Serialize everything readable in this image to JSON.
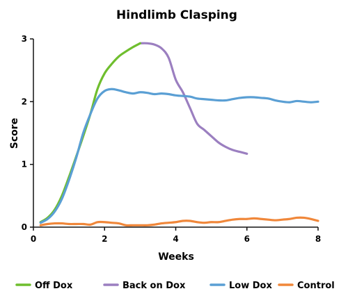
{
  "chart_data": {
    "type": "line",
    "title": "Hindlimb Clasping",
    "xlabel": "Weeks",
    "ylabel": "Score",
    "xlim": [
      0,
      8
    ],
    "ylim": [
      0,
      3
    ],
    "xticks": [
      "0",
      "2",
      "4",
      "6",
      "8"
    ],
    "yticks": [
      "0",
      "1",
      "2",
      "3"
    ],
    "grid": false,
    "legend_position": "bottom",
    "series": [
      {
        "name": "Off Dox",
        "color": "#6fbe2e",
        "points": [
          [
            0.2,
            0.08
          ],
          [
            0.4,
            0.15
          ],
          [
            0.6,
            0.28
          ],
          [
            0.8,
            0.5
          ],
          [
            1.0,
            0.8
          ],
          [
            1.2,
            1.12
          ],
          [
            1.4,
            1.45
          ],
          [
            1.6,
            1.8
          ],
          [
            1.8,
            2.2
          ],
          [
            2.0,
            2.45
          ],
          [
            2.2,
            2.6
          ],
          [
            2.4,
            2.72
          ],
          [
            2.6,
            2.8
          ],
          [
            2.8,
            2.87
          ],
          [
            3.0,
            2.93
          ]
        ]
      },
      {
        "name": "Back on Dox",
        "color": "#9b7fc0",
        "points": [
          [
            3.0,
            2.93
          ],
          [
            3.2,
            2.93
          ],
          [
            3.4,
            2.91
          ],
          [
            3.6,
            2.85
          ],
          [
            3.8,
            2.7
          ],
          [
            4.0,
            2.35
          ],
          [
            4.2,
            2.15
          ],
          [
            4.4,
            1.9
          ],
          [
            4.6,
            1.65
          ],
          [
            4.8,
            1.55
          ],
          [
            5.0,
            1.45
          ],
          [
            5.2,
            1.35
          ],
          [
            5.4,
            1.28
          ],
          [
            5.6,
            1.23
          ],
          [
            5.8,
            1.2
          ],
          [
            6.0,
            1.17
          ]
        ]
      },
      {
        "name": "Low Dox",
        "color": "#5a9fd4",
        "points": [
          [
            0.2,
            0.07
          ],
          [
            0.4,
            0.13
          ],
          [
            0.6,
            0.25
          ],
          [
            0.8,
            0.45
          ],
          [
            1.0,
            0.75
          ],
          [
            1.2,
            1.1
          ],
          [
            1.4,
            1.5
          ],
          [
            1.6,
            1.8
          ],
          [
            1.8,
            2.05
          ],
          [
            2.0,
            2.17
          ],
          [
            2.2,
            2.2
          ],
          [
            2.4,
            2.18
          ],
          [
            2.6,
            2.15
          ],
          [
            2.8,
            2.13
          ],
          [
            3.0,
            2.15
          ],
          [
            3.2,
            2.14
          ],
          [
            3.4,
            2.12
          ],
          [
            3.6,
            2.13
          ],
          [
            3.8,
            2.12
          ],
          [
            4.0,
            2.1
          ],
          [
            4.2,
            2.09
          ],
          [
            4.4,
            2.08
          ],
          [
            4.6,
            2.05
          ],
          [
            4.8,
            2.04
          ],
          [
            5.0,
            2.03
          ],
          [
            5.2,
            2.02
          ],
          [
            5.4,
            2.02
          ],
          [
            5.6,
            2.04
          ],
          [
            5.8,
            2.06
          ],
          [
            6.0,
            2.07
          ],
          [
            6.2,
            2.07
          ],
          [
            6.4,
            2.06
          ],
          [
            6.6,
            2.05
          ],
          [
            6.8,
            2.02
          ],
          [
            7.0,
            2.0
          ],
          [
            7.2,
            1.99
          ],
          [
            7.4,
            2.01
          ],
          [
            7.6,
            2.0
          ],
          [
            7.8,
            1.99
          ],
          [
            8.0,
            2.0
          ]
        ]
      },
      {
        "name": "Control",
        "color": "#f0873a",
        "points": [
          [
            0.2,
            0.03
          ],
          [
            0.4,
            0.05
          ],
          [
            0.6,
            0.06
          ],
          [
            0.8,
            0.06
          ],
          [
            1.0,
            0.05
          ],
          [
            1.2,
            0.05
          ],
          [
            1.4,
            0.05
          ],
          [
            1.6,
            0.04
          ],
          [
            1.8,
            0.08
          ],
          [
            2.0,
            0.08
          ],
          [
            2.2,
            0.07
          ],
          [
            2.4,
            0.06
          ],
          [
            2.6,
            0.03
          ],
          [
            2.8,
            0.03
          ],
          [
            3.0,
            0.03
          ],
          [
            3.2,
            0.03
          ],
          [
            3.4,
            0.04
          ],
          [
            3.6,
            0.06
          ],
          [
            3.8,
            0.07
          ],
          [
            4.0,
            0.08
          ],
          [
            4.2,
            0.1
          ],
          [
            4.4,
            0.1
          ],
          [
            4.6,
            0.08
          ],
          [
            4.8,
            0.07
          ],
          [
            5.0,
            0.08
          ],
          [
            5.2,
            0.08
          ],
          [
            5.4,
            0.1
          ],
          [
            5.6,
            0.12
          ],
          [
            5.8,
            0.13
          ],
          [
            6.0,
            0.13
          ],
          [
            6.2,
            0.14
          ],
          [
            6.4,
            0.13
          ],
          [
            6.6,
            0.12
          ],
          [
            6.8,
            0.11
          ],
          [
            7.0,
            0.12
          ],
          [
            7.2,
            0.13
          ],
          [
            7.4,
            0.15
          ],
          [
            7.6,
            0.15
          ],
          [
            7.8,
            0.13
          ],
          [
            8.0,
            0.1
          ]
        ]
      }
    ]
  }
}
